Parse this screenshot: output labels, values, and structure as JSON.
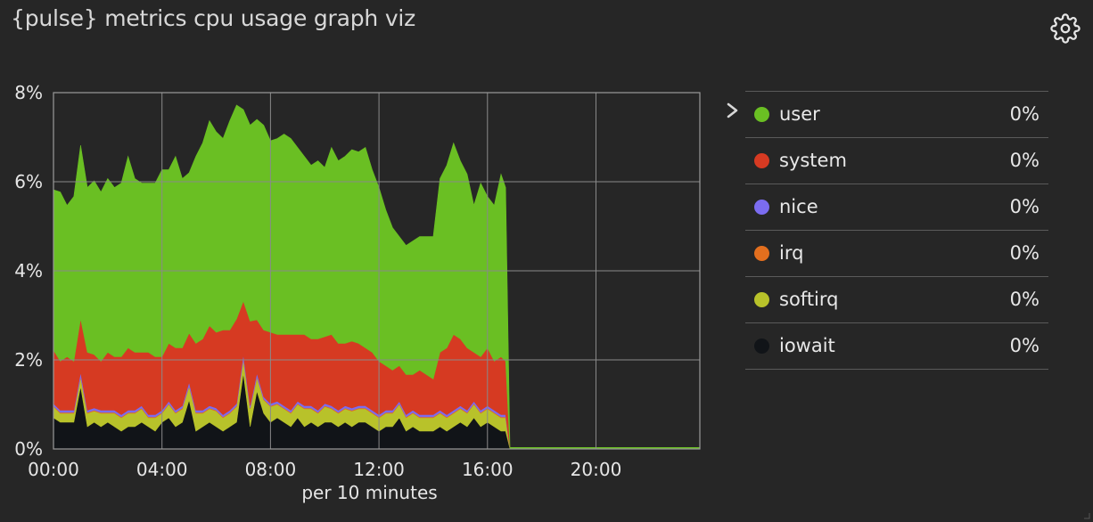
{
  "header": {
    "title": "{pulse} metrics cpu usage graph viz",
    "settings_icon": "gear-icon"
  },
  "legend": {
    "expand_icon": "chevron-right-icon",
    "items": [
      {
        "name": "user",
        "value": "0%",
        "color": "#6abf23"
      },
      {
        "name": "system",
        "value": "0%",
        "color": "#d63a22"
      },
      {
        "name": "nice",
        "value": "0%",
        "color": "#7b6cf0"
      },
      {
        "name": "irq",
        "value": "0%",
        "color": "#e36f1e"
      },
      {
        "name": "softirq",
        "value": "0%",
        "color": "#b8c22a"
      },
      {
        "name": "iowait",
        "value": "0%",
        "color": "#111418"
      }
    ]
  },
  "chart_data": {
    "type": "area",
    "stacked": true,
    "xlabel": "per 10 minutes",
    "ylabel": "",
    "x_ticks": [
      "00:00",
      "04:00",
      "08:00",
      "12:00",
      "16:00",
      "20:00"
    ],
    "y_ticks": [
      "0%",
      "2%",
      "4%",
      "6%",
      "8%"
    ],
    "xlim_hours": [
      0,
      23.83
    ],
    "ylim": [
      0,
      8
    ],
    "grid": true,
    "x_hours": [
      0,
      0.25,
      0.5,
      0.75,
      1,
      1.25,
      1.5,
      1.75,
      2,
      2.25,
      2.5,
      2.75,
      3,
      3.25,
      3.5,
      3.75,
      4,
      4.25,
      4.5,
      4.75,
      5,
      5.25,
      5.5,
      5.75,
      6,
      6.25,
      6.5,
      6.75,
      7,
      7.25,
      7.5,
      7.75,
      8,
      8.25,
      8.5,
      8.75,
      9,
      9.25,
      9.5,
      9.75,
      10,
      10.25,
      10.5,
      10.75,
      11,
      11.25,
      11.5,
      11.75,
      12,
      12.25,
      12.5,
      12.75,
      13,
      13.25,
      13.5,
      13.75,
      14,
      14.25,
      14.5,
      14.75,
      15,
      15.25,
      15.5,
      15.75,
      16,
      16.25,
      16.5,
      16.67,
      16.83,
      17,
      18,
      19,
      20,
      21,
      22,
      23,
      23.83
    ],
    "series": [
      {
        "name": "iowait",
        "color": "#111418",
        "values": [
          0.7,
          0.6,
          0.6,
          0.6,
          1.4,
          0.5,
          0.6,
          0.5,
          0.6,
          0.5,
          0.4,
          0.5,
          0.5,
          0.6,
          0.5,
          0.4,
          0.6,
          0.7,
          0.5,
          0.6,
          1.1,
          0.4,
          0.5,
          0.6,
          0.5,
          0.4,
          0.5,
          0.6,
          1.7,
          0.5,
          1.3,
          0.8,
          0.6,
          0.7,
          0.6,
          0.5,
          0.7,
          0.5,
          0.6,
          0.5,
          0.6,
          0.6,
          0.5,
          0.6,
          0.5,
          0.6,
          0.6,
          0.5,
          0.4,
          0.5,
          0.5,
          0.7,
          0.4,
          0.5,
          0.4,
          0.4,
          0.4,
          0.5,
          0.4,
          0.5,
          0.6,
          0.5,
          0.7,
          0.5,
          0.6,
          0.5,
          0.4,
          0.4,
          0,
          0,
          0,
          0,
          0,
          0,
          0,
          0,
          0
        ]
      },
      {
        "name": "softirq",
        "color": "#b8c22a",
        "values": [
          0.25,
          0.2,
          0.2,
          0.2,
          0.2,
          0.3,
          0.25,
          0.3,
          0.2,
          0.3,
          0.3,
          0.3,
          0.3,
          0.3,
          0.2,
          0.3,
          0.2,
          0.3,
          0.3,
          0.3,
          0.3,
          0.4,
          0.3,
          0.3,
          0.35,
          0.3,
          0.3,
          0.35,
          0.3,
          0.4,
          0.3,
          0.3,
          0.35,
          0.3,
          0.3,
          0.3,
          0.3,
          0.4,
          0.3,
          0.3,
          0.35,
          0.3,
          0.3,
          0.3,
          0.35,
          0.3,
          0.3,
          0.3,
          0.3,
          0.3,
          0.3,
          0.3,
          0.3,
          0.3,
          0.3,
          0.3,
          0.3,
          0.3,
          0.3,
          0.3,
          0.3,
          0.3,
          0.3,
          0.3,
          0.3,
          0.3,
          0.3,
          0.3,
          0,
          0,
          0,
          0,
          0,
          0,
          0,
          0,
          0
        ]
      },
      {
        "name": "irq",
        "color": "#e36f1e",
        "values": [
          0.02,
          0.02,
          0.02,
          0.02,
          0.02,
          0.02,
          0.02,
          0.02,
          0.02,
          0.02,
          0.02,
          0.02,
          0.02,
          0.02,
          0.02,
          0.02,
          0.02,
          0.02,
          0.02,
          0.02,
          0.02,
          0.02,
          0.02,
          0.02,
          0.02,
          0.02,
          0.02,
          0.02,
          0.02,
          0.02,
          0.02,
          0.02,
          0.02,
          0.02,
          0.02,
          0.02,
          0.02,
          0.02,
          0.02,
          0.02,
          0.02,
          0.02,
          0.02,
          0.02,
          0.02,
          0.02,
          0.02,
          0.02,
          0.02,
          0.02,
          0.02,
          0.02,
          0.02,
          0.02,
          0.02,
          0.02,
          0.02,
          0.02,
          0.02,
          0.02,
          0.02,
          0.02,
          0.02,
          0.02,
          0.02,
          0.02,
          0.02,
          0.02,
          0,
          0,
          0,
          0,
          0,
          0,
          0,
          0,
          0
        ]
      },
      {
        "name": "nice",
        "color": "#7b6cf0",
        "values": [
          0.05,
          0.05,
          0.05,
          0.05,
          0.1,
          0.05,
          0.05,
          0.05,
          0.05,
          0.05,
          0.05,
          0.05,
          0.05,
          0.05,
          0.05,
          0.05,
          0.05,
          0.05,
          0.05,
          0.05,
          0.08,
          0.05,
          0.05,
          0.05,
          0.05,
          0.05,
          0.05,
          0.05,
          0.1,
          0.05,
          0.08,
          0.05,
          0.05,
          0.05,
          0.05,
          0.05,
          0.05,
          0.05,
          0.05,
          0.05,
          0.05,
          0.05,
          0.05,
          0.05,
          0.05,
          0.05,
          0.05,
          0.05,
          0.05,
          0.05,
          0.05,
          0.05,
          0.05,
          0.05,
          0.05,
          0.05,
          0.05,
          0.05,
          0.05,
          0.05,
          0.05,
          0.05,
          0.05,
          0.05,
          0.05,
          0.05,
          0.05,
          0.05,
          0,
          0,
          0,
          0,
          0,
          0,
          0,
          0,
          0
        ]
      },
      {
        "name": "system",
        "color": "#d63a22",
        "values": [
          1.2,
          1.1,
          1.2,
          1.1,
          1.2,
          1.3,
          1.2,
          1.1,
          1.3,
          1.2,
          1.3,
          1.4,
          1.3,
          1.2,
          1.4,
          1.3,
          1.2,
          1.3,
          1.4,
          1.3,
          1.1,
          1.5,
          1.6,
          1.8,
          1.7,
          1.9,
          1.8,
          1.9,
          1.2,
          1.9,
          1.2,
          1.5,
          1.6,
          1.5,
          1.6,
          1.7,
          1.5,
          1.6,
          1.5,
          1.6,
          1.5,
          1.6,
          1.5,
          1.4,
          1.5,
          1.4,
          1.3,
          1.3,
          1.2,
          1.0,
          0.9,
          0.8,
          0.9,
          0.8,
          1.0,
          0.9,
          0.8,
          1.3,
          1.5,
          1.7,
          1.5,
          1.4,
          1.1,
          1.2,
          1.3,
          1.1,
          1.3,
          1.2,
          0,
          0,
          0,
          0,
          0,
          0,
          0,
          0,
          0
        ]
      },
      {
        "name": "user",
        "color": "#6abf23",
        "values": [
          3.6,
          3.8,
          3.4,
          3.7,
          3.9,
          3.7,
          3.9,
          3.8,
          3.9,
          3.8,
          3.9,
          4.3,
          3.9,
          3.8,
          3.8,
          3.9,
          4.2,
          3.9,
          4.3,
          3.8,
          3.6,
          4.2,
          4.4,
          4.6,
          4.5,
          4.3,
          4.7,
          4.8,
          4.3,
          4.4,
          4.5,
          4.6,
          4.3,
          4.4,
          4.5,
          4.4,
          4.2,
          4.0,
          3.9,
          4.0,
          3.8,
          4.2,
          4.1,
          4.2,
          4.3,
          4.3,
          4.5,
          4.1,
          3.9,
          3.5,
          3.2,
          2.9,
          2.9,
          3.0,
          3.0,
          3.1,
          3.2,
          3.9,
          4.1,
          4.3,
          4.0,
          3.9,
          3.3,
          3.9,
          3.4,
          3.5,
          4.1,
          3.9,
          0,
          0,
          0,
          0,
          0,
          0,
          0,
          0,
          0
        ]
      }
    ]
  }
}
